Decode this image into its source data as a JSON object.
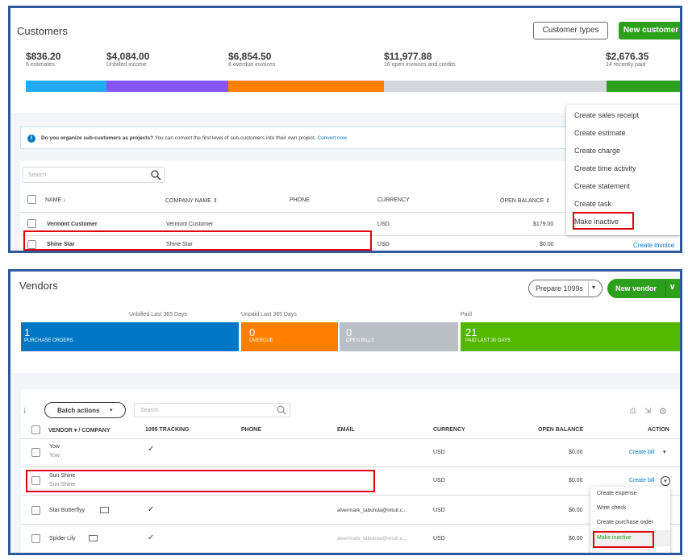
{
  "customers": {
    "title": "Customers",
    "customer_types_label": "Customer types",
    "new_customer_label": "New customer",
    "stats": [
      {
        "amount": "$836.20",
        "label": "6 estimates",
        "color": "#21abf6"
      },
      {
        "amount": "$4,084.00",
        "label": "Unbilled income",
        "color": "#8457f3"
      },
      {
        "amount": "$6,854.50",
        "label": "8 overdue invoices",
        "color": "#ff8000"
      },
      {
        "amount": "$11,977.88",
        "label": "16 open invoices and credits",
        "color": "#d4d7dc"
      },
      {
        "amount": "$2,676.35",
        "label": "14 recently paid",
        "color": "#2ca01c"
      }
    ],
    "banner": {
      "question": "Do you organize sub-customers as projects?",
      "text": " You can convert the first level of sub-customers into their own project.",
      "link": "Convert now"
    },
    "search_placeholder": "Search",
    "columns": [
      "NAME ↓",
      "COMPANY NAME ⇕",
      "PHONE",
      "CURRENCY",
      "OPEN BALANCE ⇕"
    ],
    "rows": [
      {
        "name": "Vermont Customer",
        "company": "Vermont Customer",
        "phone": "",
        "currency": "USD",
        "balance": "$179.00"
      },
      {
        "name": "Shine Star",
        "company": "Shine Star",
        "phone": "",
        "currency": "USD",
        "balance": "$0.00",
        "action": "Create invoice"
      }
    ],
    "menu": [
      "Create sales receipt",
      "Create estimate",
      "Create charge",
      "Create time activity",
      "Create statement",
      "Create task",
      "Make inactive"
    ]
  },
  "vendors": {
    "title": "Vendors",
    "prepare_label": "Prepare 1099s",
    "new_vendor_label": "New vendor",
    "section_labels": {
      "unbilled": "Unbilled Last 365 Days",
      "unpaid": "Unpaid Last 365 Days",
      "paid": "Paid"
    },
    "tiles": [
      {
        "num": "1",
        "label": "PURCHASE ORDERS",
        "color": "#0077c5"
      },
      {
        "num": "0",
        "label": "OVERDUE",
        "color": "#ff8000"
      },
      {
        "num": "0",
        "label": "OPEN BILLS",
        "color": "#babec5"
      },
      {
        "num": "21",
        "label": "PAID LAST 30 DAYS",
        "color": "#53b700"
      }
    ],
    "batch_label": "Batch actions",
    "search_placeholder": "Search",
    "columns": [
      "VENDOR ▾ / COMPANY",
      "1099 TRACKING",
      "PHONE",
      "EMAIL",
      "CURRENCY",
      "OPEN BALANCE",
      "ACTION"
    ],
    "rows": [
      {
        "name": "Yow",
        "company": "Yow",
        "tracking": "✓",
        "email": "",
        "currency": "USD",
        "balance": "$0.00",
        "action": "Create bill"
      },
      {
        "name": "Sun Shine",
        "company": "Sun Shine",
        "tracking": "",
        "email": "",
        "currency": "USD",
        "balance": "$0.00",
        "action": "Create bill"
      },
      {
        "name": "Star Butterflyy",
        "company": "",
        "tracking": "✓",
        "email": "alvermark_tabunda@intuit.c...",
        "currency": "USD",
        "balance": "$0.00",
        "action": ""
      },
      {
        "name": "Spider Lily",
        "company": "",
        "tracking": "✓",
        "email": "alvermark_tabunda@intuit.c...",
        "currency": "USD",
        "balance": "$0.00",
        "action": ""
      }
    ],
    "menu": [
      "Create expense",
      "Write check",
      "Create purchase order",
      "Make inactive"
    ]
  }
}
